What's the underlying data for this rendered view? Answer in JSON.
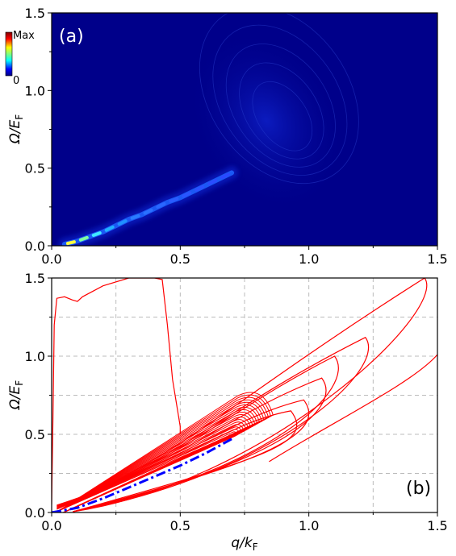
{
  "chart_data": [
    {
      "type": "heatmap",
      "panel_label": "(a)",
      "ylabel": "Ω/E_F",
      "xlim": [
        0,
        1.5
      ],
      "ylim": [
        0,
        1.5
      ],
      "xticks": [
        "0.0",
        "0.5",
        "1.0",
        "1.5"
      ],
      "yticks": [
        "0.0",
        "0.5",
        "1.0",
        "1.5"
      ],
      "colorbar": {
        "max_label": "Max",
        "min_label": "0",
        "colormap": "jet"
      },
      "background_color": "#00008a",
      "peak_ridge": {
        "x": [
          0.05,
          0.1,
          0.15,
          0.2,
          0.25,
          0.3,
          0.35,
          0.4,
          0.45,
          0.5,
          0.55,
          0.6,
          0.65,
          0.7
        ],
        "y": [
          0.01,
          0.03,
          0.06,
          0.09,
          0.13,
          0.17,
          0.2,
          0.24,
          0.28,
          0.31,
          0.35,
          0.39,
          0.43,
          0.47
        ]
      }
    },
    {
      "type": "line",
      "panel_label": "(b)",
      "xlabel": "q/k_F",
      "ylabel": "Ω/E_F",
      "xlim": [
        0,
        1.5
      ],
      "ylim": [
        0,
        1.5
      ],
      "xticks": [
        "0.0",
        "0.5",
        "1.0",
        "1.5"
      ],
      "yticks": [
        "0.0",
        "0.5",
        "1.0",
        "1.5"
      ],
      "grid": true,
      "contour_color": "#ff0000",
      "dispersion_color": "#0000ff",
      "dispersion": {
        "x": [
          0.0,
          0.1,
          0.2,
          0.3,
          0.4,
          0.5,
          0.6,
          0.7
        ],
        "y": [
          0.0,
          0.03,
          0.09,
          0.16,
          0.23,
          0.3,
          0.38,
          0.47
        ]
      },
      "outer_contour": {
        "x": [
          0.0,
          0.005,
          0.01,
          0.02,
          0.05,
          0.08,
          0.1,
          0.12,
          0.2,
          0.3,
          0.4,
          0.43,
          0.45,
          0.47,
          0.5,
          0.5
        ],
        "y": [
          0.05,
          0.6,
          1.2,
          1.37,
          1.38,
          1.36,
          1.35,
          1.38,
          1.45,
          1.5,
          1.5,
          1.49,
          1.2,
          0.85,
          0.55,
          0.5
        ]
      },
      "contour_peak": {
        "x": 0.72,
        "y": 0.48
      },
      "contour_lobes": [
        {
          "x": 1.45,
          "y": 1.5
        },
        {
          "x": 1.22,
          "y": 1.12
        },
        {
          "x": 1.1,
          "y": 1.0
        },
        {
          "x": 1.05,
          "y": 0.86
        },
        {
          "x": 0.98,
          "y": 0.72
        },
        {
          "x": 0.93,
          "y": 0.65
        }
      ]
    }
  ],
  "labels": {
    "panel_a": "(a)",
    "panel_b": "(b)",
    "colorbar_max": "Max",
    "colorbar_min": "0",
    "ylabel_a": "Ω/E",
    "ylabel_b": "Ω/E",
    "ylabel_sub": "F",
    "xlabel": "q/k",
    "xlabel_sub": "F"
  }
}
